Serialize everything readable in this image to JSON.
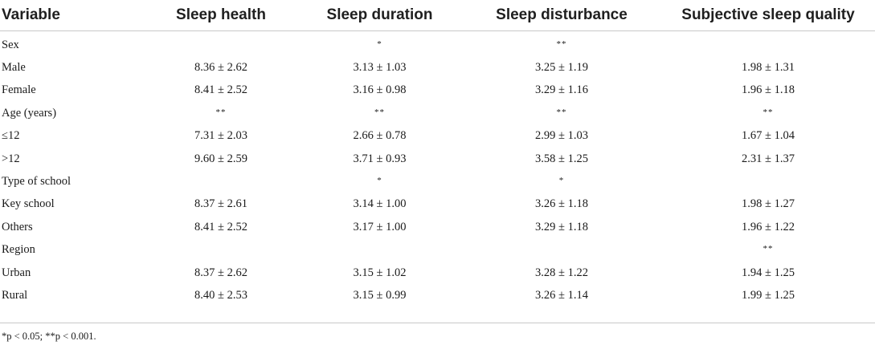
{
  "table": {
    "headers": [
      "Variable",
      "Sleep health",
      "Sleep duration",
      "Sleep disturbance",
      "Subjective sleep quality"
    ],
    "rows": [
      [
        "Sex",
        "",
        "*",
        "**",
        ""
      ],
      [
        "Male",
        "8.36 ± 2.62",
        "3.13 ± 1.03",
        "3.25 ± 1.19",
        "1.98 ± 1.31"
      ],
      [
        "Female",
        "8.41 ± 2.52",
        "3.16 ± 0.98",
        "3.29 ± 1.16",
        "1.96 ± 1.18"
      ],
      [
        "Age (years)",
        "**",
        "**",
        "**",
        "**"
      ],
      [
        "≤12",
        "7.31 ± 2.03",
        "2.66 ± 0.78",
        "2.99 ± 1.03",
        "1.67 ± 1.04"
      ],
      [
        ">12",
        "9.60 ± 2.59",
        "3.71 ± 0.93",
        "3.58 ± 1.25",
        "2.31 ± 1.37"
      ],
      [
        "Type of school",
        "",
        "*",
        "*",
        ""
      ],
      [
        "Key school",
        "8.37 ± 2.61",
        "3.14 ± 1.00",
        "3.26 ± 1.18",
        "1.98 ± 1.27"
      ],
      [
        "Others",
        "8.41 ± 2.52",
        "3.17 ± 1.00",
        "3.29 ± 1.18",
        "1.96 ± 1.22"
      ],
      [
        "Region",
        "",
        "",
        "",
        "**"
      ],
      [
        "Urban",
        "8.37 ± 2.62",
        "3.15 ± 1.02",
        "3.28 ± 1.22",
        "1.94 ± 1.25"
      ],
      [
        "Rural",
        "8.40 ± 2.53",
        "3.15 ± 0.99",
        "3.26 ± 1.14",
        "1.99 ± 1.25"
      ]
    ]
  },
  "footnote": "*p < 0.05; **p < 0.001."
}
